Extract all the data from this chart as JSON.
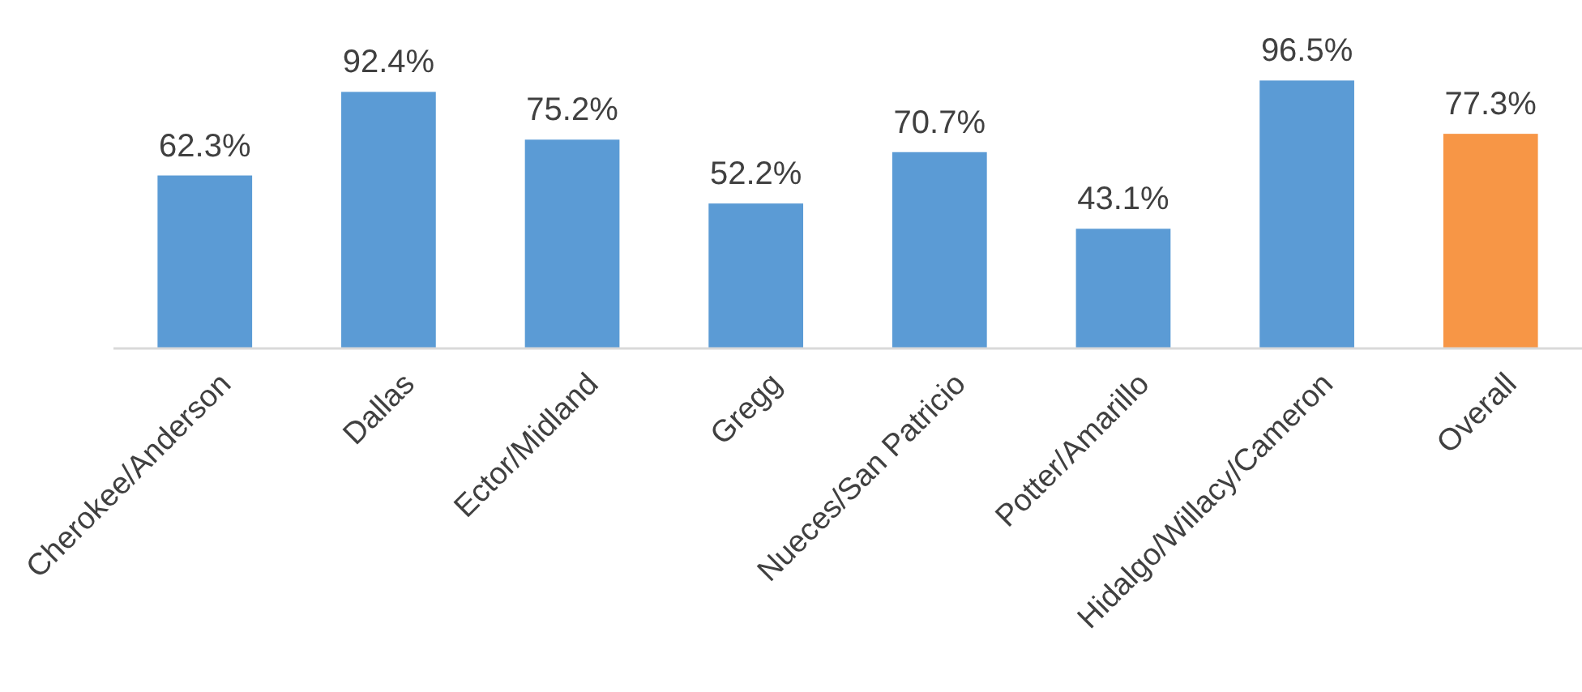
{
  "chart_data": {
    "type": "bar",
    "categories": [
      "Cherokee/Anderson",
      "Dallas",
      "Ector/Midland",
      "Gregg",
      "Nueces/San Patricio",
      "Potter/Amarillo",
      "Hidalgo/Willacy/Cameron",
      "Overall"
    ],
    "values": [
      62.3,
      92.4,
      75.2,
      52.2,
      70.7,
      43.1,
      96.5,
      77.3
    ],
    "value_labels": [
      "62.3%",
      "92.4%",
      "75.2%",
      "52.2%",
      "70.7%",
      "43.1%",
      "96.5%",
      "77.3%"
    ],
    "colors": [
      "#5b9bd5",
      "#5b9bd5",
      "#5b9bd5",
      "#5b9bd5",
      "#5b9bd5",
      "#5b9bd5",
      "#5b9bd5",
      "#f79646"
    ]
  }
}
